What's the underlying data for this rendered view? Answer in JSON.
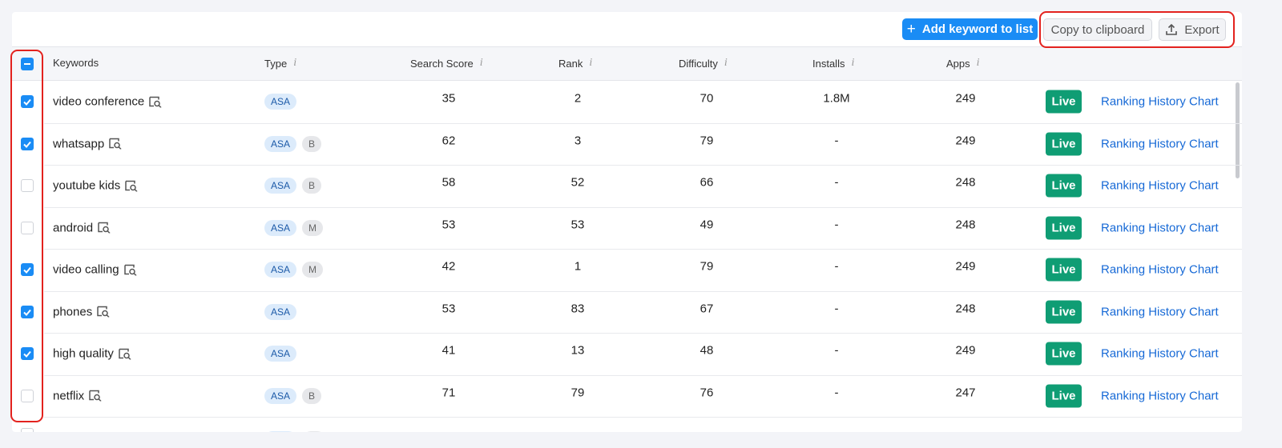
{
  "toolbar": {
    "add_button": "Add keyword to list",
    "copy_button": "Copy to clipboard",
    "export_button": "Export"
  },
  "table": {
    "columns": [
      "Keywords",
      "Type",
      "Search Score",
      "Rank",
      "Difficulty",
      "Installs",
      "Apps"
    ],
    "header_checkbox": "indeterminate",
    "rows": [
      {
        "checked": true,
        "keyword": "video conference",
        "tags": [
          "ASA"
        ],
        "search_score": 35,
        "rank": 2,
        "difficulty": 70,
        "installs": "1.8M",
        "apps": 249,
        "status": "Live",
        "link": "Ranking History Chart"
      },
      {
        "checked": true,
        "keyword": "whatsapp",
        "tags": [
          "ASA",
          "B"
        ],
        "search_score": 62,
        "rank": 3,
        "difficulty": 79,
        "installs": "-",
        "apps": 249,
        "status": "Live",
        "link": "Ranking History Chart"
      },
      {
        "checked": false,
        "keyword": "youtube kids",
        "tags": [
          "ASA",
          "B"
        ],
        "search_score": 58,
        "rank": 52,
        "difficulty": 66,
        "installs": "-",
        "apps": 248,
        "status": "Live",
        "link": "Ranking History Chart"
      },
      {
        "checked": false,
        "keyword": "android",
        "tags": [
          "ASA",
          "M"
        ],
        "search_score": 53,
        "rank": 53,
        "difficulty": 49,
        "installs": "-",
        "apps": 248,
        "status": "Live",
        "link": "Ranking History Chart"
      },
      {
        "checked": true,
        "keyword": "video calling",
        "tags": [
          "ASA",
          "M"
        ],
        "search_score": 42,
        "rank": 1,
        "difficulty": 79,
        "installs": "-",
        "apps": 249,
        "status": "Live",
        "link": "Ranking History Chart"
      },
      {
        "checked": true,
        "keyword": "phones",
        "tags": [
          "ASA"
        ],
        "search_score": 53,
        "rank": 83,
        "difficulty": 67,
        "installs": "-",
        "apps": 248,
        "status": "Live",
        "link": "Ranking History Chart"
      },
      {
        "checked": true,
        "keyword": "high quality",
        "tags": [
          "ASA"
        ],
        "search_score": 41,
        "rank": 13,
        "difficulty": 48,
        "installs": "-",
        "apps": 249,
        "status": "Live",
        "link": "Ranking History Chart"
      },
      {
        "checked": false,
        "keyword": "netflix",
        "tags": [
          "ASA",
          "B"
        ],
        "search_score": 71,
        "rank": 79,
        "difficulty": 76,
        "installs": "-",
        "apps": 247,
        "status": "Live",
        "link": "Ranking History Chart"
      }
    ]
  }
}
